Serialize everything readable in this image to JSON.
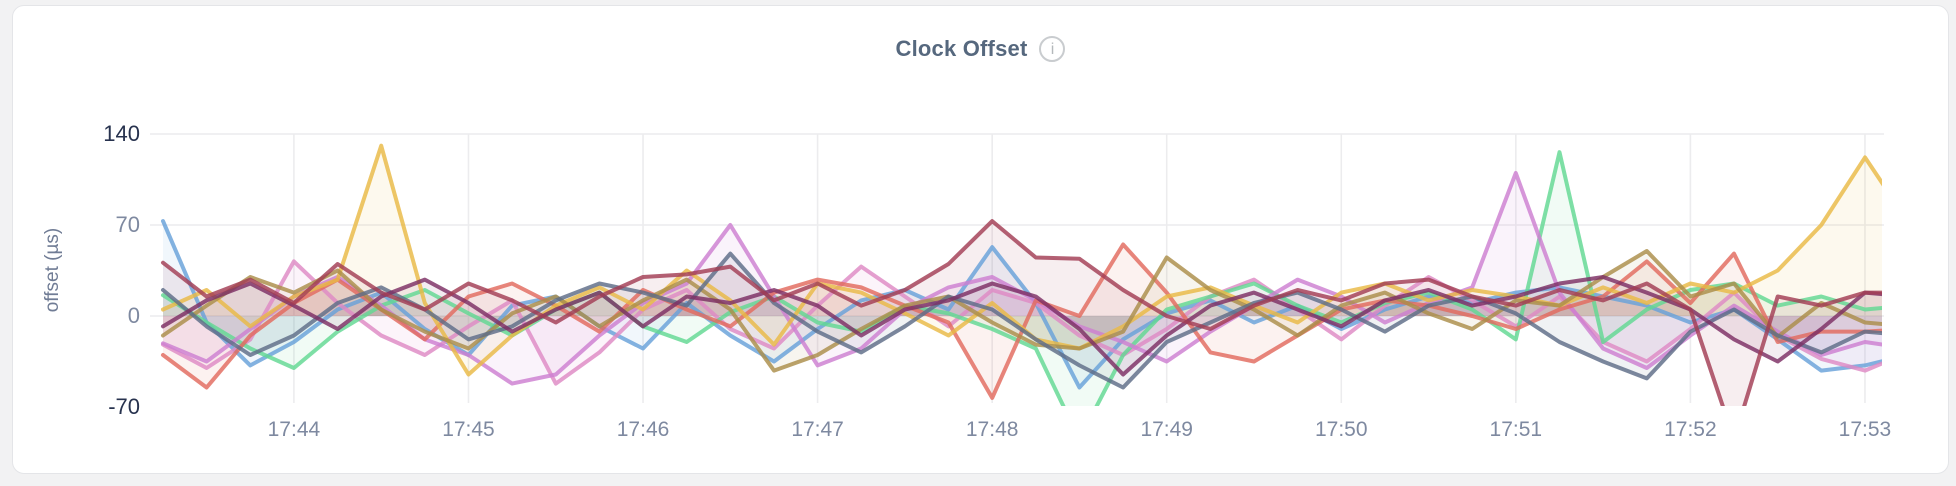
{
  "page": {
    "background": "#F2F2F3",
    "card_background": "#FFFFFF",
    "card_border": "#E4E5E8"
  },
  "header": {
    "title": "Clock Offset",
    "info_icon": "i"
  },
  "chart_data": {
    "type": "line",
    "title": "Clock Offset",
    "ylabel": "offset (µs)",
    "xlabel": "",
    "unit": "µs",
    "ylim": [
      -70,
      140
    ],
    "grid": true,
    "legend": "none",
    "x_start": "17:43:15",
    "x_interval_seconds": 15,
    "x_tick_labels": [
      "17:44",
      "17:45",
      "17:46",
      "17:47",
      "17:48",
      "17:49",
      "17:50",
      "17:51",
      "17:52",
      "17:53"
    ],
    "y_ticks": [
      {
        "label": "140",
        "value": 140,
        "strong": true
      },
      {
        "label": "70",
        "value": 70,
        "strong": false
      },
      {
        "label": "0",
        "value": 0,
        "strong": false
      },
      {
        "label": "-70",
        "value": -70,
        "strong": true
      }
    ],
    "tick_color_strong": "#27324E",
    "tick_color_normal": "#7E89A0",
    "grid_color": "#ECECEE",
    "series": [
      {
        "name": "blue",
        "color": "#68A1D9",
        "values": [
          73,
          -5,
          -38,
          -20,
          5,
          18,
          -10,
          -30,
          8,
          15,
          -8,
          -25,
          10,
          -15,
          -35,
          -10,
          12,
          20,
          5,
          53,
          10,
          -55,
          -18,
          2,
          12,
          -5,
          8,
          -10,
          5,
          15,
          10,
          18,
          22,
          15,
          8,
          -5,
          5,
          -18,
          -42,
          -38,
          -30
        ]
      },
      {
        "name": "pink",
        "color": "#DE8AC4",
        "values": [
          -22,
          -40,
          -18,
          42,
          10,
          -15,
          -30,
          -8,
          12,
          -52,
          -28,
          5,
          20,
          -10,
          -25,
          8,
          38,
          15,
          -8,
          20,
          10,
          -15,
          -30,
          -10,
          15,
          28,
          5,
          -18,
          8,
          30,
          12,
          -8,
          15,
          -20,
          -35,
          -10,
          18,
          -15,
          -33,
          -42,
          -28
        ]
      },
      {
        "name": "green",
        "color": "#61D893",
        "values": [
          16,
          -5,
          -25,
          -40,
          -12,
          8,
          20,
          2,
          -15,
          5,
          18,
          -8,
          -20,
          3,
          15,
          -5,
          -12,
          8,
          2,
          -10,
          -25,
          -95,
          -30,
          5,
          15,
          25,
          8,
          -5,
          10,
          18,
          5,
          -18,
          126,
          -20,
          5,
          20,
          25,
          8,
          15,
          5,
          8
        ]
      },
      {
        "name": "orchid",
        "color": "#CD7FD1",
        "values": [
          -21,
          -35,
          -10,
          15,
          30,
          8,
          -18,
          -30,
          -52,
          -45,
          -15,
          10,
          25,
          70,
          15,
          -38,
          -25,
          5,
          22,
          30,
          12,
          -8,
          -20,
          -35,
          -12,
          8,
          28,
          15,
          -5,
          10,
          22,
          110,
          18,
          -25,
          -40,
          -15,
          8,
          -12,
          -30,
          -20,
          -25
        ]
      },
      {
        "name": "salmon",
        "color": "#E26A5E",
        "values": [
          -30,
          -55,
          -15,
          10,
          28,
          5,
          -18,
          15,
          25,
          8,
          -12,
          20,
          5,
          -8,
          18,
          28,
          22,
          8,
          -5,
          -63,
          12,
          0,
          55,
          18,
          -28,
          -35,
          -15,
          5,
          12,
          8,
          0,
          -10,
          5,
          15,
          42,
          10,
          48,
          -20,
          -12,
          -12,
          -10
        ]
      },
      {
        "name": "gold",
        "color": "#E9BA46",
        "values": [
          5,
          20,
          -8,
          15,
          28,
          131,
          10,
          -45,
          -15,
          8,
          22,
          5,
          35,
          12,
          -22,
          25,
          18,
          2,
          -15,
          10,
          -18,
          -25,
          -8,
          15,
          22,
          8,
          -5,
          18,
          25,
          12,
          20,
          15,
          8,
          22,
          10,
          25,
          18,
          35,
          70,
          122,
          72
        ]
      },
      {
        "name": "olive",
        "color": "#AB8D49",
        "values": [
          -15,
          8,
          30,
          18,
          35,
          5,
          -12,
          -25,
          2,
          15,
          -8,
          12,
          28,
          5,
          -42,
          -30,
          -10,
          8,
          15,
          -5,
          -22,
          -25,
          -12,
          45,
          20,
          5,
          -15,
          8,
          18,
          2,
          -10,
          12,
          8,
          30,
          50,
          15,
          25,
          -16,
          10,
          -5,
          -8
        ]
      },
      {
        "name": "slate",
        "color": "#5E6C88",
        "values": [
          20,
          -8,
          -30,
          -15,
          10,
          22,
          5,
          -18,
          -8,
          12,
          25,
          18,
          8,
          48,
          10,
          -12,
          -28,
          -8,
          15,
          5,
          -18,
          -38,
          -55,
          -20,
          -5,
          10,
          18,
          5,
          -12,
          8,
          15,
          2,
          -20,
          -35,
          -48,
          -12,
          5,
          -15,
          -28,
          -12,
          -15
        ]
      },
      {
        "name": "purple",
        "color": "#7C2E64",
        "values": [
          -8,
          12,
          25,
          8,
          -10,
          15,
          28,
          10,
          -12,
          5,
          18,
          -8,
          15,
          10,
          20,
          8,
          -15,
          5,
          12,
          25,
          15,
          -10,
          -45,
          -15,
          8,
          18,
          5,
          -8,
          12,
          20,
          8,
          15,
          25,
          30,
          18,
          5,
          -18,
          -35,
          -10,
          18,
          15
        ]
      },
      {
        "name": "maroon",
        "color": "#A23D54",
        "values": [
          41,
          15,
          28,
          10,
          40,
          18,
          5,
          25,
          12,
          -5,
          15,
          30,
          32,
          38,
          12,
          25,
          8,
          20,
          40,
          73,
          45,
          44,
          20,
          0,
          -10,
          8,
          20,
          12,
          25,
          28,
          15,
          8,
          20,
          12,
          25,
          5,
          -95,
          15,
          8,
          18,
          18
        ]
      }
    ]
  }
}
